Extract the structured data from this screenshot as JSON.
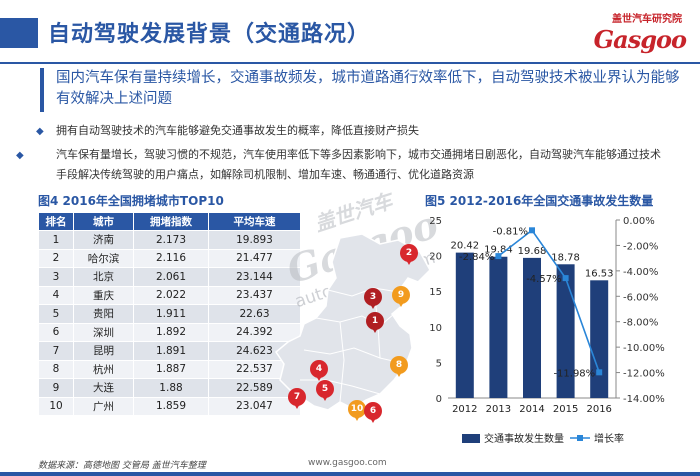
{
  "header": {
    "title": "自动驾驶发展背景（交通路况）",
    "logo_cn": "盖世汽车研究院",
    "logo_en": "Gasgoo"
  },
  "headline": "国内汽车保有量持续增长，交通事故频发，城市道路通行效率低下，自动驾驶技术被业界认为能够有效解决上述问题",
  "bullets": [
    "拥有自动驾驶技术的汽车能够避免交通事故发生的概率，降低直接财产损失",
    "汽车保有量增长，驾驶习惯的不规范，汽车使用率低下等多因素影响下，城市交通拥堵日剧恶化，自动驾驶汽车能够通过技术手段解决传统驾驶的用户痛点，如解除司机限制、增加车速、畅通通行、优化道路资源"
  ],
  "table_title": "图4  2016年全国拥堵城市TOP10",
  "table": {
    "headers": [
      "排名",
      "城市",
      "拥堵指数",
      "平均车速"
    ],
    "rows": [
      [
        "1",
        "济南",
        "2.173",
        "19.893"
      ],
      [
        "2",
        "哈尔滨",
        "2.116",
        "21.477"
      ],
      [
        "3",
        "北京",
        "2.061",
        "23.144"
      ],
      [
        "4",
        "重庆",
        "2.022",
        "23.437"
      ],
      [
        "5",
        "贵阳",
        "1.911",
        "22.63"
      ],
      [
        "6",
        "深圳",
        "1.892",
        "24.392"
      ],
      [
        "7",
        "昆明",
        "1.891",
        "24.623"
      ],
      [
        "8",
        "杭州",
        "1.887",
        "22.537"
      ],
      [
        "9",
        "大连",
        "1.88",
        "22.589"
      ],
      [
        "10",
        "广州",
        "1.859",
        "23.047"
      ]
    ]
  },
  "watermark": {
    "cn": "盖世汽车",
    "en": "Gasgoo",
    "url": "auto.gasgoo.com"
  },
  "map_pins": [
    {
      "label": "2",
      "color": "red"
    },
    {
      "label": "3",
      "color": "dred"
    },
    {
      "label": "9",
      "color": "orange"
    },
    {
      "label": "1",
      "color": "dred"
    },
    {
      "label": "8",
      "color": "orange"
    },
    {
      "label": "4",
      "color": "red"
    },
    {
      "label": "5",
      "color": "red"
    },
    {
      "label": "7",
      "color": "red"
    },
    {
      "label": "10",
      "color": "orange"
    },
    {
      "label": "6",
      "color": "red"
    }
  ],
  "chart_title": "图5  2012-2016年全国交通事故发生数量",
  "chart_data": {
    "type": "bar",
    "categories": [
      "2012",
      "2013",
      "2014",
      "2015",
      "2016"
    ],
    "series": [
      {
        "name": "交通事故发生数量",
        "values": [
          20.42,
          19.84,
          19.68,
          18.78,
          16.53
        ],
        "color": "#1f3f7a",
        "axis": "left"
      },
      {
        "name": "增长率",
        "type": "line",
        "values_label": [
          "",
          "-2.84%",
          "-0.81%",
          "-4.57%",
          "-11.98%"
        ],
        "values": [
          null,
          -2.84,
          -0.81,
          -4.57,
          -11.98
        ],
        "color": "#2a86d8",
        "axis": "right"
      }
    ],
    "ylim": [
      0,
      25
    ],
    "yticks": [
      "0",
      "5",
      "10",
      "15",
      "20",
      "25"
    ],
    "y2lim": [
      -14,
      0
    ],
    "y2ticks": [
      "0.00%",
      "-2.00%",
      "-4.00%",
      "-6.00%",
      "-8.00%",
      "-10.00%",
      "-12.00%",
      "-14.00%"
    ],
    "legend": "bottom"
  },
  "footer": {
    "source": "数据来源：高德地图  交管局  盖世汽车整理",
    "url": "www.gasgoo.com"
  }
}
